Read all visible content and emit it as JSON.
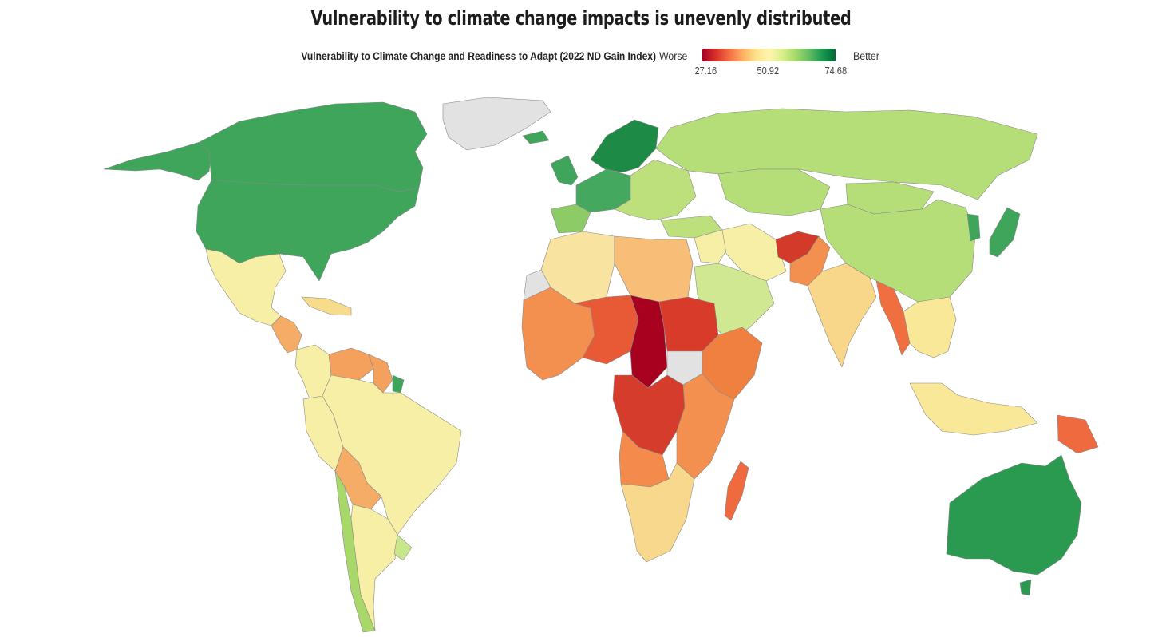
{
  "title": "Vulnerability to climate change impacts is unevenly distributed",
  "legend": {
    "label": "Vulnerability to Climate Change and Readiness to Adapt (2022 ND Gain Index)",
    "low_word": "Worse",
    "high_word": "Better",
    "ticks": [
      "27.16",
      "50.92",
      "74.68"
    ]
  },
  "colors": {
    "scale_low": "#a50026",
    "scale_mid": "#fff5b0",
    "scale_high": "#006837",
    "no_data": "#e2e2e2"
  },
  "regions": [
    {
      "name": "canada",
      "color": "#3fa55a"
    },
    {
      "name": "united-states",
      "color": "#3fa55a"
    },
    {
      "name": "alaska",
      "color": "#3fa55a"
    },
    {
      "name": "greenland",
      "color": "#e2e2e2"
    },
    {
      "name": "mexico",
      "color": "#f8efa6"
    },
    {
      "name": "central-america",
      "color": "#f4ac66"
    },
    {
      "name": "caribbean",
      "color": "#f7dd8b"
    },
    {
      "name": "venezuela",
      "color": "#f4a15e"
    },
    {
      "name": "guyana",
      "color": "#f4a15e"
    },
    {
      "name": "french-guiana",
      "color": "#3fa55a"
    },
    {
      "name": "brazil",
      "color": "#f8efa6"
    },
    {
      "name": "colombia",
      "color": "#f8efa6"
    },
    {
      "name": "peru",
      "color": "#f8efa6"
    },
    {
      "name": "bolivia",
      "color": "#f4ac66"
    },
    {
      "name": "chile",
      "color": "#a9d86a"
    },
    {
      "name": "argentina",
      "color": "#f8efa6"
    },
    {
      "name": "uruguay",
      "color": "#c8e68a"
    },
    {
      "name": "iceland",
      "color": "#3fa55a"
    },
    {
      "name": "uk-ireland",
      "color": "#3fa55a"
    },
    {
      "name": "scandinavia",
      "color": "#1d8a46"
    },
    {
      "name": "western-europe",
      "color": "#44a85e"
    },
    {
      "name": "eastern-europe",
      "color": "#bde07c"
    },
    {
      "name": "iberia",
      "color": "#8ccb66"
    },
    {
      "name": "russia",
      "color": "#b6de78"
    },
    {
      "name": "kazakhstan",
      "color": "#b6de78"
    },
    {
      "name": "mongolia",
      "color": "#b6de78"
    },
    {
      "name": "china",
      "color": "#b6de78"
    },
    {
      "name": "turkey",
      "color": "#bde07c"
    },
    {
      "name": "middle-east",
      "color": "#f8efa6"
    },
    {
      "name": "arabian-peninsula",
      "color": "#cfe891"
    },
    {
      "name": "iran",
      "color": "#f8efa6"
    },
    {
      "name": "afghanistan",
      "color": "#d33a2a"
    },
    {
      "name": "pakistan",
      "color": "#f4904f"
    },
    {
      "name": "india",
      "color": "#f8d68a"
    },
    {
      "name": "myanmar",
      "color": "#f06f41"
    },
    {
      "name": "southeast-asia",
      "color": "#f8e898"
    },
    {
      "name": "japan",
      "color": "#3fa55a"
    },
    {
      "name": "korea",
      "color": "#3fa55a"
    },
    {
      "name": "indonesia",
      "color": "#f8e898"
    },
    {
      "name": "papua-new-guinea",
      "color": "#ef6a3f"
    },
    {
      "name": "australia",
      "color": "#2a9a50"
    },
    {
      "name": "new-zealand",
      "color": "#2a9a50"
    },
    {
      "name": "north-africa",
      "color": "#f8e3a0"
    },
    {
      "name": "libya-egypt",
      "color": "#f8be78"
    },
    {
      "name": "west-africa",
      "color": "#f4904f"
    },
    {
      "name": "sahel",
      "color": "#e85a36"
    },
    {
      "name": "chad",
      "color": "#a8001f"
    },
    {
      "name": "sudan",
      "color": "#d93b2b"
    },
    {
      "name": "south-sudan",
      "color": "#e2e2e2"
    },
    {
      "name": "horn-of-africa",
      "color": "#f0803f"
    },
    {
      "name": "central-africa",
      "color": "#d63c2b"
    },
    {
      "name": "east-africa",
      "color": "#f4904f"
    },
    {
      "name": "angola",
      "color": "#f48b4d"
    },
    {
      "name": "southern-africa",
      "color": "#f8d88c"
    },
    {
      "name": "madagascar",
      "color": "#ef6a3f"
    },
    {
      "name": "western-sahara",
      "color": "#e2e2e2"
    }
  ]
}
